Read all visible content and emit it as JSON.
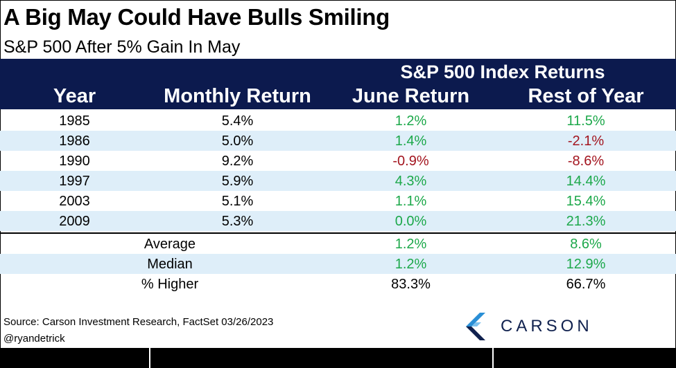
{
  "title": "A Big May Could Have Bulls Smiling",
  "subtitle": "S&P 500 After 5% Gain In May",
  "header": {
    "group_title": "S&P 500 Index Returns",
    "columns": [
      "Year",
      "Monthly Return",
      "June Return",
      "Rest of Year"
    ]
  },
  "colors": {
    "header_bg": "#0c1a4e",
    "positive": "#1ca84a",
    "negative": "#a3151f",
    "shade": "#deeef9"
  },
  "chart_data": {
    "type": "table",
    "title": "A Big May Could Have Bulls Smiling",
    "subtitle": "S&P 500 After 5% Gain In May",
    "columns": [
      "Year",
      "Monthly Return",
      "June Return",
      "Rest of Year"
    ],
    "rows": [
      {
        "year": "1985",
        "monthly": "5.4%",
        "june": "1.2%",
        "rest": "11.5%"
      },
      {
        "year": "1986",
        "monthly": "5.0%",
        "june": "1.4%",
        "rest": "-2.1%"
      },
      {
        "year": "1990",
        "monthly": "9.2%",
        "june": "-0.9%",
        "rest": "-8.6%"
      },
      {
        "year": "1997",
        "monthly": "5.9%",
        "june": "4.3%",
        "rest": "14.4%"
      },
      {
        "year": "2003",
        "monthly": "5.1%",
        "june": "1.1%",
        "rest": "15.4%"
      },
      {
        "year": "2009",
        "monthly": "5.3%",
        "june": "0.0%",
        "rest": "21.3%"
      }
    ],
    "summary": [
      {
        "label": "Average",
        "june": "1.2%",
        "rest": "8.6%"
      },
      {
        "label": "Median",
        "june": "1.2%",
        "rest": "12.9%"
      },
      {
        "label": "% Higher",
        "june": "83.3%",
        "rest": "66.7%"
      }
    ]
  },
  "footer": {
    "source": "Source: Carson Investment Research, FactSet 03/26/2023",
    "handle": "@ryandetrick",
    "logo_text": "CARSON"
  }
}
